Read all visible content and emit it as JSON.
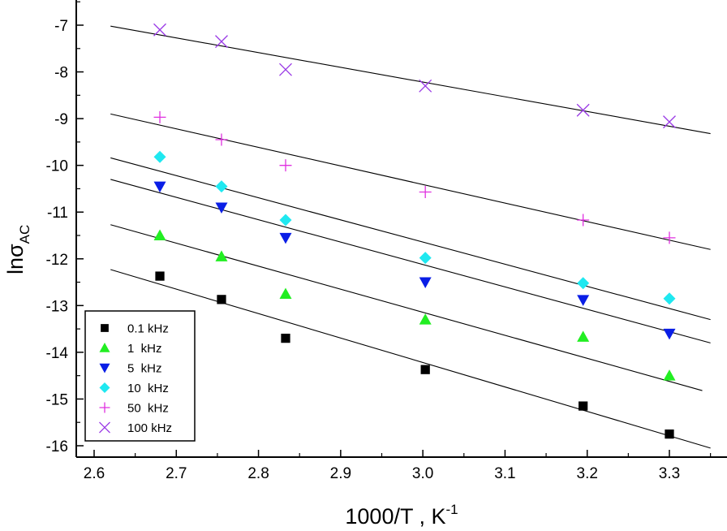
{
  "chart_data": {
    "type": "scatter",
    "xlabel": {
      "main": "1000/T , K",
      "sup": "-1"
    },
    "ylabel": {
      "main": "lnσ",
      "sub": "AC"
    },
    "xlim": [
      2.6,
      3.35
    ],
    "ylim": [
      -16.1,
      -6.5
    ],
    "x_ticks": [
      2.6,
      2.7,
      2.8,
      2.9,
      3.0,
      3.1,
      3.2,
      3.3
    ],
    "x_tick_labels": [
      "2.6",
      "2.7",
      "2.8",
      "2.9",
      "3.0",
      "3.1",
      "3.2",
      "3.3"
    ],
    "y_ticks": [
      -7,
      -8,
      -9,
      -10,
      -11,
      -12,
      -13,
      -14,
      -15,
      -16
    ],
    "y_tick_labels": [
      "-7",
      "-8",
      "-9",
      "-10",
      "-11",
      "-12",
      "-13",
      "-14",
      "-15",
      "-16"
    ],
    "x": [
      2.68,
      2.755,
      2.833,
      3.003,
      3.195,
      3.3
    ],
    "legend_position": "bottom-left",
    "series": [
      {
        "name": "0.1 kHz",
        "marker": "square",
        "color": "#000000",
        "values": [
          -12.37,
          -12.87,
          -13.7,
          -14.37,
          -15.15,
          -15.75
        ],
        "fit": {
          "x": [
            2.62,
            3.35
          ],
          "y": [
            -12.23,
            -16.05
          ]
        }
      },
      {
        "name": "1 kHz",
        "marker": "triangle-up",
        "color": "#22ee22",
        "values": [
          -11.5,
          -11.95,
          -12.75,
          -13.3,
          -13.67,
          -14.5
        ],
        "fit": {
          "x": [
            2.62,
            3.34
          ],
          "y": [
            -11.27,
            -14.82
          ]
        }
      },
      {
        "name": "5 kHz",
        "marker": "triangle-down",
        "color": "#0a1ee6",
        "values": [
          -10.45,
          -10.9,
          -11.55,
          -12.5,
          -12.88,
          -13.6
        ],
        "fit": {
          "x": [
            2.62,
            3.35
          ],
          "y": [
            -10.3,
            -13.8
          ]
        }
      },
      {
        "name": "10 kHz",
        "marker": "diamond",
        "color": "#1fe8f0",
        "values": [
          -9.82,
          -10.45,
          -11.17,
          -11.98,
          -12.52,
          -12.85
        ],
        "fit": {
          "x": [
            2.62,
            3.35
          ],
          "y": [
            -9.84,
            -13.3
          ]
        }
      },
      {
        "name": "50 kHz",
        "marker": "plus",
        "color": "#e030e0",
        "values": [
          -8.97,
          -9.45,
          -10.0,
          -10.57,
          -11.17,
          -11.55
        ],
        "fit": {
          "x": [
            2.62,
            3.35
          ],
          "y": [
            -8.9,
            -11.8
          ]
        }
      },
      {
        "name": "100 kHz",
        "marker": "x",
        "color": "#9a3ae6",
        "values": [
          -7.1,
          -7.35,
          -7.95,
          -8.3,
          -8.82,
          -9.07
        ],
        "fit": {
          "x": [
            2.62,
            3.35
          ],
          "y": [
            -7.02,
            -9.32
          ]
        }
      }
    ]
  },
  "legend": {
    "items": [
      {
        "label": "0.1 kHz",
        "marker": "square",
        "color": "#000000"
      },
      {
        "label": "1  kHz",
        "marker": "triangle-up",
        "color": "#22ee22"
      },
      {
        "label": "5  kHz",
        "marker": "triangle-down",
        "color": "#0a1ee6"
      },
      {
        "label": "10  kHz",
        "marker": "diamond",
        "color": "#1fe8f0"
      },
      {
        "label": "50  kHz",
        "marker": "plus",
        "color": "#e030e0"
      },
      {
        "label": "100 kHz",
        "marker": "x",
        "color": "#9a3ae6"
      }
    ]
  }
}
